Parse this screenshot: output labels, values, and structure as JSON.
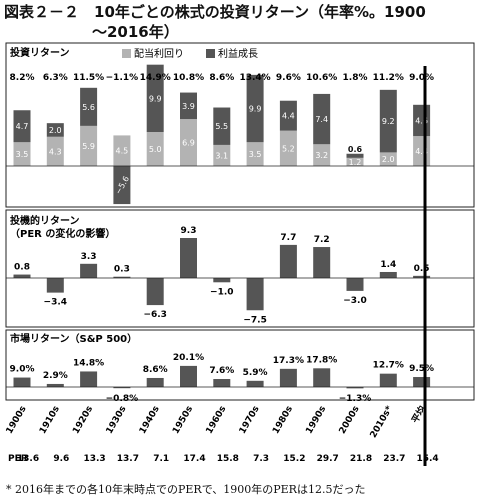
{
  "header": {
    "title_line1": "図表２－２　10年ごとの株式の投資リターン（年率%。1900",
    "title_line2": "〜2016年）"
  },
  "panels": {
    "p1": {
      "label": "投資リターン",
      "legend": [
        "配当利回り",
        "利益成長"
      ]
    },
    "p2": {
      "label1": "投機的リターン",
      "label2": "（PER の変化の影響）"
    },
    "p3": {
      "label": "市場リターン（S&P 500）"
    }
  },
  "per_label": "PER",
  "footnote": "* 2016年までの各10年末時点でのPERで、1900年のPERは12.5だった",
  "colors": {
    "dividend": "#b3b3b3",
    "growth": "#555555",
    "bar": "#555555"
  },
  "chart_data": [
    {
      "type": "bar",
      "title": "投資リターン",
      "stacked": true,
      "categories": [
        "1900s",
        "1910s",
        "1920s",
        "1930s",
        "1940s",
        "1950s",
        "1960s",
        "1970s",
        "1980s",
        "1990s",
        "2000s",
        "2010s*",
        "平均"
      ],
      "series": [
        {
          "name": "配当利回り",
          "values": [
            3.5,
            4.3,
            5.9,
            4.5,
            5.0,
            6.9,
            3.1,
            3.5,
            5.2,
            3.2,
            1.2,
            2.0,
            4.4
          ]
        },
        {
          "name": "利益成長",
          "values": [
            4.7,
            2.0,
            5.6,
            -5.6,
            9.9,
            3.9,
            5.5,
            9.9,
            4.4,
            7.4,
            0.6,
            9.2,
            4.6
          ]
        }
      ],
      "totals": [
        "8.2%",
        "6.3%",
        "11.5%",
        "−1.1%",
        "14.9%",
        "10.8%",
        "8.6%",
        "13.4%",
        "9.6%",
        "10.6%",
        "1.8%",
        "11.2%",
        "9.0%"
      ],
      "dividend_labels": [
        "3.5",
        "4.3",
        "5.9",
        "4.5",
        "5.0",
        "6.9",
        "3.1",
        "3.5",
        "5.2",
        "3.2",
        "1.2",
        "2.0",
        "4.4"
      ],
      "growth_labels": [
        "4.7",
        "2.0",
        "5.6",
        "−5.6",
        "9.9",
        "3.9",
        "5.5",
        "9.9",
        "4.4",
        "7.4",
        "0.6",
        "9.2",
        "4.6"
      ]
    },
    {
      "type": "bar",
      "title": "投機的リターン（PER の変化の影響）",
      "categories": [
        "1900s",
        "1910s",
        "1920s",
        "1930s",
        "1940s",
        "1950s",
        "1960s",
        "1970s",
        "1980s",
        "1990s",
        "2000s",
        "2010s*",
        "平均"
      ],
      "values": [
        0.8,
        -3.4,
        3.3,
        0.3,
        -6.3,
        9.3,
        -1.0,
        -7.5,
        7.7,
        7.2,
        -3.0,
        1.4,
        0.5
      ],
      "labels": [
        "0.8",
        "−3.4",
        "3.3",
        "0.3",
        "−6.3",
        "9.3",
        "−1.0",
        "−7.5",
        "7.7",
        "7.2",
        "−3.0",
        "1.4",
        "0.5"
      ]
    },
    {
      "type": "bar",
      "title": "市場リターン（S&P 500）",
      "categories": [
        "1900s",
        "1910s",
        "1920s",
        "1930s",
        "1940s",
        "1950s",
        "1960s",
        "1970s",
        "1980s",
        "1990s",
        "2000s",
        "2010s*",
        "平均"
      ],
      "values": [
        9.0,
        2.9,
        14.8,
        -0.8,
        8.6,
        20.1,
        7.6,
        5.9,
        17.3,
        17.8,
        -1.3,
        12.7,
        9.5
      ],
      "labels": [
        "9.0%",
        "2.9%",
        "14.8%",
        "−0.8%",
        "8.6%",
        "20.1%",
        "7.6%",
        "5.9%",
        "17.3%",
        "17.8%",
        "−1.3%",
        "12.7%",
        "9.5%"
      ]
    }
  ],
  "per_values": [
    "13.6",
    "9.6",
    "13.3",
    "13.7",
    "7.1",
    "17.4",
    "15.8",
    "7.3",
    "15.2",
    "29.7",
    "21.8",
    "23.7",
    "15.4"
  ]
}
